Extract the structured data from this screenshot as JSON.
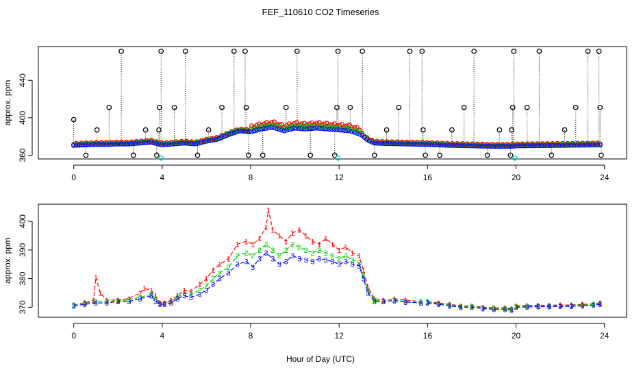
{
  "figure": {
    "title": "FEF_110610  CO2 Timeseries",
    "xlabel": "Hour of Day (UTC)"
  },
  "colors": {
    "red": "#ff0000",
    "green": "#00cc00",
    "blue": "#0000ff",
    "black": "#000000",
    "cyan": "#00cccc"
  },
  "chart_data": [
    {
      "type": "scatter",
      "title": "FEF_110610  CO2 Timeseries",
      "xlabel": "",
      "ylabel": "approx. ppm",
      "xlim": [
        -1.6,
        25.0
      ],
      "ylim": [
        356,
        476
      ],
      "x_ticks": [
        "0",
        "4",
        "8",
        "12",
        "16",
        "20",
        "24"
      ],
      "y_ticks": [
        "360",
        "400",
        "440"
      ],
      "baseline": {
        "hours": [
          0,
          0.5,
          1,
          1.5,
          2,
          2.5,
          3,
          3.5,
          3.8,
          4,
          4.5,
          5,
          5.5,
          6,
          6.5,
          7,
          7.5,
          8,
          8.5,
          9,
          9.5,
          10,
          10.5,
          11,
          11.5,
          12,
          12.5,
          13,
          13.3,
          13.6,
          14,
          15,
          16,
          17,
          18,
          19,
          19.8,
          20,
          21,
          22,
          23,
          23.8
        ],
        "ppm": [
          370.5,
          371,
          371.5,
          371.5,
          372,
          372,
          373,
          374,
          372,
          371,
          372,
          373,
          372,
          375,
          377,
          382,
          386,
          385,
          388,
          390,
          386,
          389,
          388,
          389,
          388,
          387,
          386,
          382,
          376,
          373,
          372.5,
          372,
          371.5,
          370.5,
          370,
          369.5,
          369.5,
          370,
          370.2,
          370.5,
          370.8,
          371
        ],
        "red_offset_after_8h": 4
      },
      "outliers": [
        {
          "hour": 0.0,
          "ppm": 398,
          "dir": "up"
        },
        {
          "hour": 0.55,
          "ppm": 360,
          "dir": "down"
        },
        {
          "hour": 1.05,
          "ppm": 387,
          "dir": "up"
        },
        {
          "hour": 1.6,
          "ppm": 411,
          "dir": "up"
        },
        {
          "hour": 2.15,
          "ppm": 471,
          "dir": "up"
        },
        {
          "hour": 2.7,
          "ppm": 360,
          "dir": "down"
        },
        {
          "hour": 3.25,
          "ppm": 387,
          "dir": "up"
        },
        {
          "hour": 3.75,
          "ppm": 360,
          "dir": "down"
        },
        {
          "hour": 3.85,
          "ppm": 387,
          "dir": "up"
        },
        {
          "hour": 3.88,
          "ppm": 411,
          "dir": "up"
        },
        {
          "hour": 3.95,
          "ppm": 471,
          "dir": "up"
        },
        {
          "hour": 4.55,
          "ppm": 411,
          "dir": "up"
        },
        {
          "hour": 5.05,
          "ppm": 471,
          "dir": "up"
        },
        {
          "hour": 5.6,
          "ppm": 360,
          "dir": "down"
        },
        {
          "hour": 6.1,
          "ppm": 387,
          "dir": "up"
        },
        {
          "hour": 6.7,
          "ppm": 411,
          "dir": "up"
        },
        {
          "hour": 7.25,
          "ppm": 471,
          "dir": "up"
        },
        {
          "hour": 7.75,
          "ppm": 471,
          "dir": "up"
        },
        {
          "hour": 7.8,
          "ppm": 411,
          "dir": "up"
        },
        {
          "hour": 7.9,
          "ppm": 360,
          "dir": "down"
        },
        {
          "hour": 8.55,
          "ppm": 360,
          "dir": "down"
        },
        {
          "hour": 9.6,
          "ppm": 411,
          "dir": "up"
        },
        {
          "hour": 10.1,
          "ppm": 471,
          "dir": "up"
        },
        {
          "hour": 10.7,
          "ppm": 360,
          "dir": "down"
        },
        {
          "hour": 11.8,
          "ppm": 360,
          "dir": "down"
        },
        {
          "hour": 11.9,
          "ppm": 411,
          "dir": "up"
        },
        {
          "hour": 11.95,
          "ppm": 471,
          "dir": "up"
        },
        {
          "hour": 12.5,
          "ppm": 411,
          "dir": "up"
        },
        {
          "hour": 13.05,
          "ppm": 471,
          "dir": "up"
        },
        {
          "hour": 13.6,
          "ppm": 360,
          "dir": "down"
        },
        {
          "hour": 14.15,
          "ppm": 387,
          "dir": "up"
        },
        {
          "hour": 14.7,
          "ppm": 411,
          "dir": "up"
        },
        {
          "hour": 15.2,
          "ppm": 471,
          "dir": "up"
        },
        {
          "hour": 15.75,
          "ppm": 471,
          "dir": "up"
        },
        {
          "hour": 15.8,
          "ppm": 387,
          "dir": "up"
        },
        {
          "hour": 15.9,
          "ppm": 360,
          "dir": "down"
        },
        {
          "hour": 16.55,
          "ppm": 360,
          "dir": "down"
        },
        {
          "hour": 17.1,
          "ppm": 387,
          "dir": "up"
        },
        {
          "hour": 17.65,
          "ppm": 411,
          "dir": "up"
        },
        {
          "hour": 18.1,
          "ppm": 471,
          "dir": "up"
        },
        {
          "hour": 18.7,
          "ppm": 360,
          "dir": "down"
        },
        {
          "hour": 19.25,
          "ppm": 387,
          "dir": "up"
        },
        {
          "hour": 19.75,
          "ppm": 360,
          "dir": "down"
        },
        {
          "hour": 19.8,
          "ppm": 387,
          "dir": "up"
        },
        {
          "hour": 19.85,
          "ppm": 411,
          "dir": "up"
        },
        {
          "hour": 19.9,
          "ppm": 471,
          "dir": "up"
        },
        {
          "hour": 20.5,
          "ppm": 411,
          "dir": "up"
        },
        {
          "hour": 21.05,
          "ppm": 471,
          "dir": "up"
        },
        {
          "hour": 21.6,
          "ppm": 360,
          "dir": "down"
        },
        {
          "hour": 22.2,
          "ppm": 387,
          "dir": "up"
        },
        {
          "hour": 22.7,
          "ppm": 411,
          "dir": "up"
        },
        {
          "hour": 23.25,
          "ppm": 471,
          "dir": "up"
        },
        {
          "hour": 23.75,
          "ppm": 471,
          "dir": "up"
        },
        {
          "hour": 23.8,
          "ppm": 411,
          "dir": "up"
        },
        {
          "hour": 23.85,
          "ppm": 360,
          "dir": "down"
        }
      ],
      "cyan_points": [
        {
          "hour": 3.95,
          "ppm": 357
        },
        {
          "hour": 11.95,
          "ppm": 357
        },
        {
          "hour": 19.95,
          "ppm": 357
        }
      ]
    },
    {
      "type": "line",
      "title": "",
      "xlabel": "Hour of Day (UTC)",
      "ylabel": "approx. ppm",
      "xlim": [
        -1.6,
        25.0
      ],
      "ylim": [
        366.5,
        406
      ],
      "x_ticks": [
        "0",
        "4",
        "8",
        "12",
        "16",
        "20",
        "24"
      ],
      "y_ticks": [
        "370",
        "380",
        "390",
        "400"
      ],
      "series": [
        {
          "name": "1",
          "color": "red",
          "hours": [
            0,
            0.5,
            0.9,
            1.0,
            1.2,
            1.5,
            2,
            2.5,
            3,
            3.2,
            3.5,
            3.7,
            3.9,
            4.1,
            4.4,
            4.7,
            5,
            5.3,
            5.7,
            6,
            6.3,
            6.6,
            7,
            7.4,
            7.8,
            8.1,
            8.4,
            8.7,
            8.8,
            9.0,
            9.3,
            9.6,
            9.9,
            10.2,
            10.5,
            10.8,
            11.1,
            11.4,
            11.7,
            12,
            12.3,
            12.6,
            12.9,
            13.1,
            13.3,
            13.6,
            14,
            14.5,
            15,
            15.7
          ],
          "ppm": [
            370.8,
            371.6,
            372.5,
            380.5,
            375,
            372.5,
            372.5,
            373,
            375,
            376.5,
            376,
            374,
            371.5,
            371.5,
            372.5,
            374,
            376,
            375.5,
            378,
            380,
            383,
            385,
            387,
            392,
            393,
            392,
            394,
            398,
            404,
            397,
            395,
            393,
            396,
            397,
            395,
            393,
            392,
            394,
            392,
            390,
            391,
            389,
            388,
            383,
            377,
            373,
            372.5,
            373,
            372.5,
            372
          ]
        },
        {
          "name": "2",
          "color": "green",
          "hours": [
            0,
            0.5,
            1.0,
            1.5,
            2,
            2.5,
            3,
            3.5,
            3.7,
            3.9,
            4.1,
            4.4,
            4.7,
            5,
            5.3,
            5.7,
            6,
            6.3,
            6.6,
            7,
            7.4,
            7.8,
            8.1,
            8.4,
            8.7,
            9.0,
            9.3,
            9.6,
            9.9,
            10.2,
            10.5,
            10.8,
            11.1,
            11.4,
            11.7,
            12,
            12.3,
            12.6,
            12.9,
            13.1,
            13.3,
            13.6,
            14,
            14.5,
            15,
            15.7
          ],
          "ppm": [
            370.8,
            371.4,
            372,
            372,
            372.3,
            372.6,
            373.5,
            374.5,
            373,
            371.3,
            371.4,
            372,
            373.5,
            375,
            374.5,
            376,
            377.5,
            380,
            382,
            384,
            388,
            389,
            388,
            390,
            392,
            390,
            388,
            390,
            392,
            391,
            390,
            389,
            390,
            389,
            388,
            387,
            388,
            386.5,
            385.5,
            381,
            376,
            372.5,
            372,
            372.5,
            372,
            371.5
          ]
        },
        {
          "name": "3",
          "color": "blue",
          "hours": [
            0,
            0.5,
            1.0,
            1.5,
            2,
            2.5,
            3,
            3.5,
            3.7,
            3.9,
            4.1,
            4.4,
            4.7,
            5,
            5.3,
            5.7,
            6,
            6.3,
            6.6,
            7,
            7.4,
            7.8,
            8.1,
            8.4,
            8.7,
            9.0,
            9.3,
            9.6,
            9.9,
            10.2,
            10.5,
            10.8,
            11.1,
            11.4,
            11.7,
            12,
            12.3,
            12.6,
            12.9,
            13.1,
            13.3,
            13.6,
            14,
            14.5,
            15,
            15.7
          ],
          "ppm": [
            370.5,
            371,
            371.5,
            371.5,
            372,
            372,
            373,
            374,
            372,
            371,
            371,
            371.5,
            373,
            374,
            373.5,
            374.5,
            376,
            378,
            380,
            382,
            385,
            386,
            384,
            387,
            389,
            387,
            385,
            386,
            388,
            387,
            386.5,
            386,
            387,
            386.5,
            386,
            385,
            386,
            385,
            384.5,
            380,
            375,
            372,
            372,
            372.3,
            371.8,
            371.5
          ]
        },
        {
          "name": "1",
          "color": "red",
          "hours": [
            16,
            16.5,
            17,
            17.5,
            18,
            18.5,
            19,
            19.5,
            19.8
          ],
          "ppm": [
            372,
            371.5,
            371,
            370.5,
            370.5,
            370,
            369.8,
            369.8,
            369.5
          ]
        },
        {
          "name": "2",
          "color": "green",
          "hours": [
            16,
            16.5,
            17,
            17.5,
            18,
            18.5,
            19,
            19.5,
            19.8
          ],
          "ppm": [
            371.8,
            371.3,
            370.8,
            370.3,
            370.3,
            369.8,
            369.6,
            369.6,
            369.3
          ]
        },
        {
          "name": "3",
          "color": "blue",
          "hours": [
            16,
            16.5,
            17,
            17.5,
            18,
            18.5,
            19,
            19.5,
            19.8
          ],
          "ppm": [
            371.5,
            371,
            370.5,
            370,
            370,
            369.5,
            369.3,
            369.3,
            369
          ]
        },
        {
          "name": "1",
          "color": "red",
          "hours": [
            20,
            20.5,
            21,
            21.5,
            22,
            22.5,
            23,
            23.5,
            23.8
          ],
          "ppm": [
            370.5,
            370.6,
            370.7,
            370.7,
            370.8,
            370.8,
            371,
            371.2,
            371.5
          ]
        },
        {
          "name": "2",
          "color": "green",
          "hours": [
            20,
            20.5,
            21,
            21.5,
            22,
            22.5,
            23,
            23.5,
            23.8
          ],
          "ppm": [
            370.3,
            370.4,
            370.5,
            370.5,
            370.6,
            370.6,
            370.8,
            371,
            371.3
          ]
        },
        {
          "name": "3",
          "color": "blue",
          "hours": [
            20,
            20.5,
            21,
            21.5,
            22,
            22.5,
            23,
            23.5,
            23.8
          ],
          "ppm": [
            370,
            370.1,
            370.2,
            370.2,
            370.3,
            370.3,
            370.5,
            370.7,
            371
          ]
        }
      ]
    }
  ]
}
